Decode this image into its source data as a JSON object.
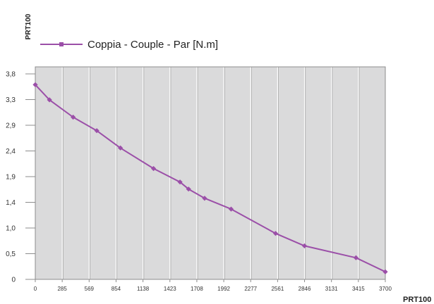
{
  "chart_data": {
    "type": "line",
    "ylabel": "PRT100",
    "xlabel": "PRT100",
    "x_ticks": [
      "0",
      "285",
      "569",
      "854",
      "1138",
      "1423",
      "1708",
      "1992",
      "2277",
      "2561",
      "2846",
      "3131",
      "3415",
      "3700"
    ],
    "y_ticks": [
      "3,8",
      "3,3",
      "2,9",
      "2,4",
      "1,9",
      "1,4",
      "1,0",
      "0,5",
      "0"
    ],
    "xlim": [
      0,
      3700
    ],
    "ylim": [
      0,
      3.8
    ],
    "grid": "vertical",
    "legend_position": "top-left",
    "colors": {
      "series": "#9b4fa8",
      "plot_background": "#dadadb",
      "grid": "#ffffff",
      "frame": "#8c8c8c"
    },
    "series": [
      {
        "name": "Coppia - Couple - Par [N.m]",
        "x": [
          0,
          150,
          400,
          650,
          900,
          1250,
          1530,
          1620,
          1790,
          2070,
          2540,
          2846,
          3390,
          3700
        ],
        "y": [
          3.6,
          3.32,
          3.0,
          2.75,
          2.43,
          2.05,
          1.8,
          1.67,
          1.5,
          1.3,
          0.85,
          0.62,
          0.4,
          0.14
        ]
      }
    ]
  }
}
